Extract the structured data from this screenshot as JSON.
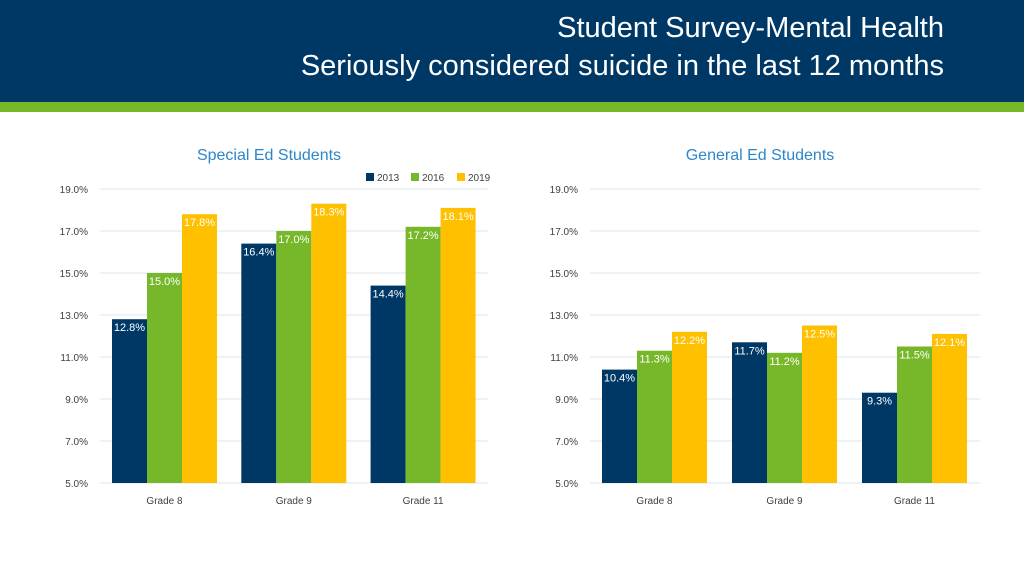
{
  "header": {
    "title_line1": "Student Survey-Mental Health",
    "title_line2": "Seriously considered suicide in the last 12 months"
  },
  "colors": {
    "header_bg": "#003865",
    "stripe": "#77b82a",
    "title_accent": "#2e86c8",
    "gridline": "#d9e4ee"
  },
  "legend": {
    "items": [
      {
        "label": "2013",
        "color": "#003865"
      },
      {
        "label": "2016",
        "color": "#77b82a"
      },
      {
        "label": "2019",
        "color": "#ffc000"
      }
    ],
    "placement": "top-center"
  },
  "chart_data": [
    {
      "type": "bar",
      "title": "Special Ed Students",
      "categories": [
        "Grade 8",
        "Grade 9",
        "Grade 11"
      ],
      "series": [
        {
          "name": "2013",
          "values": [
            12.8,
            16.4,
            14.4
          ],
          "labels": [
            "12.8%",
            "16.4%",
            "14.4%"
          ]
        },
        {
          "name": "2016",
          "values": [
            15.0,
            17.0,
            17.2
          ],
          "labels": [
            "15.0%",
            "17.0%",
            "17.2%"
          ]
        },
        {
          "name": "2019",
          "values": [
            17.8,
            18.3,
            18.1
          ],
          "labels": [
            "17.8%",
            "18.3%",
            "18.1%"
          ]
        }
      ],
      "ylim": [
        5,
        19
      ],
      "yticks": [
        "5.0%",
        "7.0%",
        "9.0%",
        "11.0%",
        "13.0%",
        "15.0%",
        "17.0%",
        "19.0%"
      ],
      "grid": true
    },
    {
      "type": "bar",
      "title": "General Ed Students",
      "categories": [
        "Grade 8",
        "Grade 9",
        "Grade 11"
      ],
      "series": [
        {
          "name": "2013",
          "values": [
            10.4,
            11.7,
            9.3
          ],
          "labels": [
            "10.4%",
            "11.7%",
            "9.3%"
          ]
        },
        {
          "name": "2016",
          "values": [
            11.3,
            11.2,
            11.5
          ],
          "labels": [
            "11.3%",
            "11.2%",
            "11.5%"
          ]
        },
        {
          "name": "2019",
          "values": [
            12.2,
            12.5,
            12.1
          ],
          "labels": [
            "12.2%",
            "12.5%",
            "12.1%"
          ]
        }
      ],
      "ylim": [
        5,
        19
      ],
      "yticks": [
        "5.0%",
        "7.0%",
        "9.0%",
        "11.0%",
        "13.0%",
        "15.0%",
        "17.0%",
        "19.0%"
      ],
      "grid": true
    }
  ]
}
